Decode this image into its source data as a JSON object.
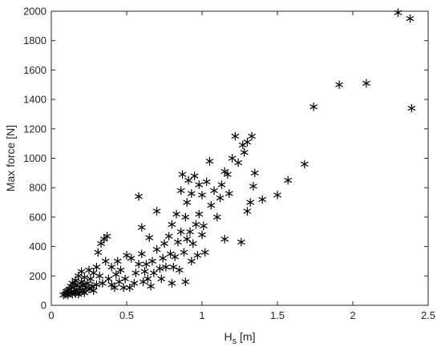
{
  "chart_data": {
    "type": "scatter",
    "xlabel": "H",
    "xlabel_sub": "s",
    "xlabel_unit": " [m]",
    "ylabel": "Max force [N]",
    "xlim": [
      0,
      2.5
    ],
    "ylim": [
      0,
      2000
    ],
    "x_ticks": [
      0,
      0.5,
      1,
      1.5,
      2,
      2.5
    ],
    "x_tick_labels": [
      "0",
      "0.5",
      "1",
      "1.5",
      "2",
      "2.5"
    ],
    "y_ticks": [
      0,
      200,
      400,
      600,
      800,
      1000,
      1200,
      1400,
      1600,
      1800,
      2000
    ],
    "y_tick_labels": [
      "0",
      "200",
      "400",
      "600",
      "800",
      "1000",
      "1200",
      "1400",
      "1600",
      "1800",
      "2000"
    ],
    "grid": false,
    "marker": "*",
    "series": [
      {
        "color": "#000000",
        "points": [
          [
            0.08,
            70
          ],
          [
            0.09,
            75
          ],
          [
            0.1,
            80
          ],
          [
            0.1,
            95
          ],
          [
            0.11,
            100
          ],
          [
            0.11,
            70
          ],
          [
            0.12,
            85
          ],
          [
            0.12,
            110
          ],
          [
            0.13,
            90
          ],
          [
            0.13,
            130
          ],
          [
            0.14,
            75
          ],
          [
            0.14,
            150
          ],
          [
            0.15,
            95
          ],
          [
            0.15,
            120
          ],
          [
            0.16,
            80
          ],
          [
            0.16,
            170
          ],
          [
            0.17,
            100
          ],
          [
            0.17,
            140
          ],
          [
            0.18,
            75
          ],
          [
            0.18,
            200
          ],
          [
            0.19,
            120
          ],
          [
            0.19,
            90
          ],
          [
            0.2,
            160
          ],
          [
            0.2,
            230
          ],
          [
            0.21,
            100
          ],
          [
            0.21,
            140
          ],
          [
            0.22,
            85
          ],
          [
            0.22,
            190
          ],
          [
            0.23,
            120
          ],
          [
            0.24,
            150
          ],
          [
            0.25,
            110
          ],
          [
            0.25,
            240
          ],
          [
            0.26,
            180
          ],
          [
            0.27,
            130
          ],
          [
            0.28,
            220
          ],
          [
            0.28,
            100
          ],
          [
            0.3,
            260
          ],
          [
            0.3,
            140
          ],
          [
            0.31,
            360
          ],
          [
            0.32,
            200
          ],
          [
            0.33,
            420
          ],
          [
            0.34,
            150
          ],
          [
            0.35,
            450
          ],
          [
            0.36,
            300
          ],
          [
            0.37,
            470
          ],
          [
            0.38,
            180
          ],
          [
            0.4,
            260
          ],
          [
            0.4,
            140
          ],
          [
            0.42,
            120
          ],
          [
            0.43,
            210
          ],
          [
            0.44,
            300
          ],
          [
            0.45,
            160
          ],
          [
            0.46,
            240
          ],
          [
            0.48,
            120
          ],
          [
            0.49,
            180
          ],
          [
            0.5,
            340
          ],
          [
            0.52,
            120
          ],
          [
            0.53,
            320
          ],
          [
            0.55,
            150
          ],
          [
            0.56,
            220
          ],
          [
            0.58,
            280
          ],
          [
            0.58,
            740
          ],
          [
            0.6,
            350
          ],
          [
            0.6,
            530
          ],
          [
            0.61,
            160
          ],
          [
            0.62,
            230
          ],
          [
            0.63,
            280
          ],
          [
            0.64,
            180
          ],
          [
            0.65,
            460
          ],
          [
            0.66,
            130
          ],
          [
            0.67,
            300
          ],
          [
            0.68,
            220
          ],
          [
            0.7,
            640
          ],
          [
            0.7,
            380
          ],
          [
            0.72,
            250
          ],
          [
            0.73,
            180
          ],
          [
            0.74,
            320
          ],
          [
            0.75,
            420
          ],
          [
            0.76,
            260
          ],
          [
            0.78,
            470
          ],
          [
            0.79,
            350
          ],
          [
            0.8,
            150
          ],
          [
            0.8,
            550
          ],
          [
            0.81,
            260
          ],
          [
            0.82,
            330
          ],
          [
            0.83,
            620
          ],
          [
            0.84,
            430
          ],
          [
            0.85,
            240
          ],
          [
            0.86,
            500
          ],
          [
            0.86,
            780
          ],
          [
            0.87,
            890
          ],
          [
            0.88,
            360
          ],
          [
            0.89,
            600
          ],
          [
            0.89,
            160
          ],
          [
            0.9,
            450
          ],
          [
            0.9,
            700
          ],
          [
            0.91,
            850
          ],
          [
            0.92,
            500
          ],
          [
            0.93,
            300
          ],
          [
            0.93,
            760
          ],
          [
            0.94,
            420
          ],
          [
            0.95,
            880
          ],
          [
            0.96,
            550
          ],
          [
            0.97,
            340
          ],
          [
            0.98,
            620
          ],
          [
            0.98,
            820
          ],
          [
            1.0,
            480
          ],
          [
            1.0,
            750
          ],
          [
            1.01,
            540
          ],
          [
            1.02,
            360
          ],
          [
            1.03,
            840
          ],
          [
            1.05,
            980
          ],
          [
            1.06,
            680
          ],
          [
            1.08,
            780
          ],
          [
            1.1,
            600
          ],
          [
            1.12,
            730
          ],
          [
            1.13,
            820
          ],
          [
            1.15,
            450
          ],
          [
            1.15,
            910
          ],
          [
            1.17,
            890
          ],
          [
            1.18,
            760
          ],
          [
            1.2,
            1000
          ],
          [
            1.22,
            1150
          ],
          [
            1.24,
            970
          ],
          [
            1.26,
            430
          ],
          [
            1.27,
            1090
          ],
          [
            1.28,
            1040
          ],
          [
            1.3,
            640
          ],
          [
            1.3,
            1110
          ],
          [
            1.32,
            700
          ],
          [
            1.33,
            1150
          ],
          [
            1.34,
            810
          ],
          [
            1.35,
            900
          ],
          [
            1.4,
            720
          ],
          [
            1.5,
            750
          ],
          [
            1.57,
            850
          ],
          [
            1.68,
            960
          ],
          [
            1.74,
            1350
          ],
          [
            1.91,
            1500
          ],
          [
            2.09,
            1510
          ],
          [
            2.3,
            1990
          ],
          [
            2.38,
            1950
          ],
          [
            2.39,
            1340
          ]
        ]
      }
    ]
  }
}
